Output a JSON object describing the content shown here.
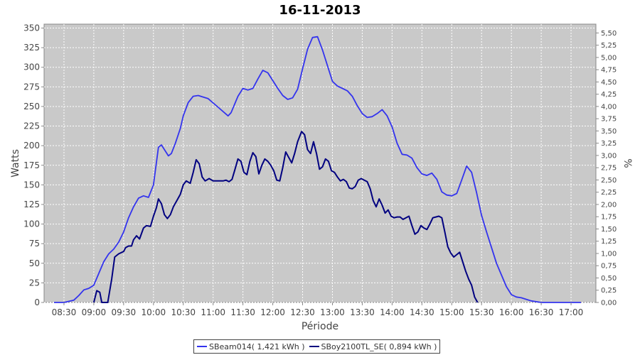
{
  "chart_data": {
    "type": "line",
    "title": "16-11-2013",
    "xlabel": "Période",
    "ylabel": "Watts",
    "y2label": "%",
    "ylim": [
      0,
      355
    ],
    "y2lim": [
      0,
      5.68
    ],
    "yticks": [
      "0",
      "25",
      "50",
      "75",
      "100",
      "125",
      "150",
      "175",
      "200",
      "225",
      "250",
      "275",
      "300",
      "325",
      "350"
    ],
    "y2ticks": [
      "0,00",
      "0,25",
      "0,50",
      "0,75",
      "1,00",
      "1,25",
      "1,50",
      "1,75",
      "2,00",
      "2,25",
      "2,50",
      "2,75",
      "3,00",
      "3,25",
      "3,50",
      "3,75",
      "4,00",
      "4,25",
      "4,50",
      "4,75",
      "5,00",
      "5,25",
      "5,50"
    ],
    "xticks": [
      "08:30",
      "09:00",
      "09:30",
      "10:00",
      "10:30",
      "11:00",
      "11:30",
      "12:00",
      "12:30",
      "13:00",
      "13:30",
      "14:00",
      "14:30",
      "15:00",
      "15:30",
      "16:00",
      "16:30",
      "17:00"
    ],
    "xlim": [
      "08:10",
      "17:25"
    ],
    "grid": true,
    "legend_position": "bottom",
    "series": [
      {
        "name": "SBeam014( 1,421 kWh )",
        "color": "#3333ee",
        "points": [
          [
            "08:20",
            0
          ],
          [
            "08:30",
            0
          ],
          [
            "08:40",
            3
          ],
          [
            "08:45",
            9
          ],
          [
            "08:50",
            16
          ],
          [
            "08:55",
            18
          ],
          [
            "09:00",
            22
          ],
          [
            "09:05",
            37
          ],
          [
            "09:10",
            52
          ],
          [
            "09:15",
            62
          ],
          [
            "09:20",
            68
          ],
          [
            "09:25",
            77
          ],
          [
            "09:30",
            90
          ],
          [
            "09:35",
            108
          ],
          [
            "09:40",
            122
          ],
          [
            "09:45",
            133
          ],
          [
            "09:50",
            136
          ],
          [
            "09:55",
            134
          ],
          [
            "10:00",
            150
          ],
          [
            "10:05",
            198
          ],
          [
            "10:08",
            201
          ],
          [
            "10:12",
            193
          ],
          [
            "10:15",
            187
          ],
          [
            "10:18",
            190
          ],
          [
            "10:22",
            203
          ],
          [
            "10:27",
            222
          ],
          [
            "10:30",
            238
          ],
          [
            "10:35",
            255
          ],
          [
            "10:40",
            263
          ],
          [
            "10:45",
            264
          ],
          [
            "10:55",
            260
          ],
          [
            "11:05",
            249
          ],
          [
            "11:15",
            238
          ],
          [
            "11:18",
            242
          ],
          [
            "11:25",
            263
          ],
          [
            "11:30",
            273
          ],
          [
            "11:35",
            271
          ],
          [
            "11:40",
            273
          ],
          [
            "11:45",
            285
          ],
          [
            "11:50",
            296
          ],
          [
            "11:55",
            293
          ],
          [
            "12:00",
            283
          ],
          [
            "12:05",
            273
          ],
          [
            "12:10",
            264
          ],
          [
            "12:15",
            259
          ],
          [
            "12:20",
            261
          ],
          [
            "12:25",
            272
          ],
          [
            "12:30",
            298
          ],
          [
            "12:35",
            323
          ],
          [
            "12:40",
            338
          ],
          [
            "12:45",
            339
          ],
          [
            "12:50",
            322
          ],
          [
            "12:55",
            302
          ],
          [
            "13:00",
            282
          ],
          [
            "13:05",
            276
          ],
          [
            "13:10",
            273
          ],
          [
            "13:15",
            270
          ],
          [
            "13:20",
            263
          ],
          [
            "13:25",
            251
          ],
          [
            "13:30",
            241
          ],
          [
            "13:35",
            236
          ],
          [
            "13:40",
            237
          ],
          [
            "13:45",
            241
          ],
          [
            "13:50",
            246
          ],
          [
            "13:55",
            238
          ],
          [
            "14:00",
            224
          ],
          [
            "14:05",
            203
          ],
          [
            "14:10",
            189
          ],
          [
            "14:15",
            188
          ],
          [
            "14:20",
            184
          ],
          [
            "14:25",
            172
          ],
          [
            "14:30",
            164
          ],
          [
            "14:35",
            162
          ],
          [
            "14:40",
            165
          ],
          [
            "14:45",
            157
          ],
          [
            "14:50",
            141
          ],
          [
            "14:55",
            137
          ],
          [
            "15:00",
            136
          ],
          [
            "15:05",
            139
          ],
          [
            "15:10",
            156
          ],
          [
            "15:15",
            174
          ],
          [
            "15:20",
            166
          ],
          [
            "15:25",
            140
          ],
          [
            "15:30",
            111
          ],
          [
            "15:35",
            90
          ],
          [
            "15:40",
            70
          ],
          [
            "15:45",
            50
          ],
          [
            "15:50",
            35
          ],
          [
            "15:55",
            20
          ],
          [
            "16:00",
            10
          ],
          [
            "16:05",
            7
          ],
          [
            "16:10",
            6
          ],
          [
            "16:15",
            4
          ],
          [
            "16:20",
            2
          ],
          [
            "16:25",
            1
          ],
          [
            "16:30",
            0
          ],
          [
            "17:00",
            0
          ],
          [
            "17:10",
            0
          ]
        ]
      },
      {
        "name": "SBoy2100TL_SE( 0,894 kWh )",
        "color": "#000080",
        "points": [
          [
            "09:00",
            0
          ],
          [
            "09:03",
            15
          ],
          [
            "09:06",
            13
          ],
          [
            "09:08",
            0
          ],
          [
            "09:12",
            0
          ],
          [
            "09:14",
            0
          ],
          [
            "09:18",
            30
          ],
          [
            "09:21",
            58
          ],
          [
            "09:25",
            62
          ],
          [
            "09:30",
            65
          ],
          [
            "09:32",
            70
          ],
          [
            "09:35",
            72
          ],
          [
            "09:38",
            72
          ],
          [
            "09:40",
            80
          ],
          [
            "09:43",
            85
          ],
          [
            "09:46",
            81
          ],
          [
            "09:50",
            95
          ],
          [
            "09:53",
            98
          ],
          [
            "09:57",
            97
          ],
          [
            "10:00",
            110
          ],
          [
            "10:03",
            121
          ],
          [
            "10:05",
            132
          ],
          [
            "10:08",
            126
          ],
          [
            "10:11",
            112
          ],
          [
            "10:14",
            107
          ],
          [
            "10:17",
            112
          ],
          [
            "10:20",
            122
          ],
          [
            "10:24",
            131
          ],
          [
            "10:27",
            138
          ],
          [
            "10:30",
            150
          ],
          [
            "10:33",
            155
          ],
          [
            "10:37",
            152
          ],
          [
            "10:40",
            166
          ],
          [
            "10:43",
            182
          ],
          [
            "10:46",
            177
          ],
          [
            "10:49",
            160
          ],
          [
            "10:52",
            155
          ],
          [
            "10:56",
            158
          ],
          [
            "11:00",
            155
          ],
          [
            "11:10",
            155
          ],
          [
            "11:13",
            156
          ],
          [
            "11:16",
            154
          ],
          [
            "11:19",
            157
          ],
          [
            "11:22",
            170
          ],
          [
            "11:25",
            183
          ],
          [
            "11:28",
            180
          ],
          [
            "11:31",
            166
          ],
          [
            "11:34",
            163
          ],
          [
            "11:37",
            180
          ],
          [
            "11:40",
            191
          ],
          [
            "11:43",
            186
          ],
          [
            "11:46",
            164
          ],
          [
            "11:49",
            175
          ],
          [
            "11:52",
            183
          ],
          [
            "11:55",
            180
          ],
          [
            "11:58",
            175
          ],
          [
            "12:01",
            168
          ],
          [
            "12:04",
            156
          ],
          [
            "12:07",
            155
          ],
          [
            "12:10",
            172
          ],
          [
            "12:13",
            192
          ],
          [
            "12:16",
            185
          ],
          [
            "12:19",
            178
          ],
          [
            "12:22",
            190
          ],
          [
            "12:25",
            205
          ],
          [
            "12:29",
            218
          ],
          [
            "12:32",
            214
          ],
          [
            "12:35",
            195
          ],
          [
            "12:38",
            190
          ],
          [
            "12:41",
            205
          ],
          [
            "12:44",
            190
          ],
          [
            "12:47",
            170
          ],
          [
            "12:50",
            173
          ],
          [
            "12:53",
            183
          ],
          [
            "12:56",
            180
          ],
          [
            "12:59",
            168
          ],
          [
            "13:02",
            166
          ],
          [
            "13:05",
            160
          ],
          [
            "13:08",
            155
          ],
          [
            "13:11",
            157
          ],
          [
            "13:14",
            154
          ],
          [
            "13:17",
            146
          ],
          [
            "13:20",
            145
          ],
          [
            "13:23",
            148
          ],
          [
            "13:26",
            156
          ],
          [
            "13:29",
            158
          ],
          [
            "13:32",
            156
          ],
          [
            "13:35",
            154
          ],
          [
            "13:38",
            145
          ],
          [
            "13:41",
            130
          ],
          [
            "13:44",
            122
          ],
          [
            "13:47",
            132
          ],
          [
            "13:50",
            124
          ],
          [
            "13:53",
            114
          ],
          [
            "13:56",
            118
          ],
          [
            "13:59",
            110
          ],
          [
            "14:02",
            108
          ],
          [
            "14:05",
            109
          ],
          [
            "14:08",
            109
          ],
          [
            "14:11",
            106
          ],
          [
            "14:14",
            108
          ],
          [
            "14:17",
            110
          ],
          [
            "14:20",
            98
          ],
          [
            "14:23",
            87
          ],
          [
            "14:26",
            90
          ],
          [
            "14:29",
            98
          ],
          [
            "14:32",
            95
          ],
          [
            "14:35",
            93
          ],
          [
            "14:38",
            100
          ],
          [
            "14:41",
            108
          ],
          [
            "14:44",
            109
          ],
          [
            "14:47",
            110
          ],
          [
            "14:50",
            108
          ],
          [
            "14:53",
            90
          ],
          [
            "14:56",
            71
          ],
          [
            "14:59",
            63
          ],
          [
            "15:02",
            58
          ],
          [
            "15:05",
            61
          ],
          [
            "15:08",
            64
          ],
          [
            "15:11",
            52
          ],
          [
            "15:14",
            40
          ],
          [
            "15:17",
            30
          ],
          [
            "15:20",
            22
          ],
          [
            "15:23",
            7
          ],
          [
            "15:26",
            0
          ]
        ]
      }
    ]
  }
}
